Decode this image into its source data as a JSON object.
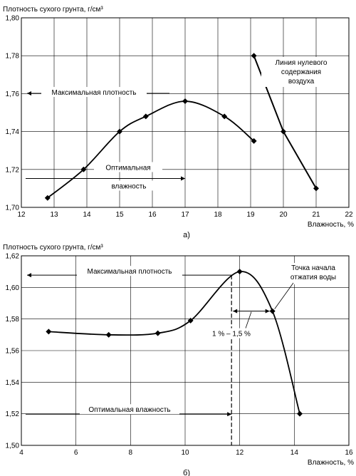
{
  "chart_data": [
    {
      "id": "a",
      "type": "line",
      "caption": "а)",
      "ylabel": "Плотность сухого грунта, г/см³",
      "xlabel": "Влажность, %",
      "xlim": [
        12,
        22
      ],
      "ylim": [
        1.7,
        1.8
      ],
      "xticks": [
        "12",
        "13",
        "14",
        "15",
        "16",
        "17",
        "18",
        "19",
        "20",
        "21",
        "22"
      ],
      "yticks": [
        "1,70",
        "1,72",
        "1,74",
        "1,76",
        "1,78",
        "1,80"
      ],
      "grid": true,
      "series": [
        {
          "kind": "compaction-curve",
          "points": [
            [
              12.8,
              1.705
            ],
            [
              13.9,
              1.72
            ],
            [
              15.0,
              1.74
            ],
            [
              15.8,
              1.748
            ],
            [
              17.0,
              1.756
            ],
            [
              18.2,
              1.748
            ],
            [
              19.1,
              1.735
            ]
          ]
        },
        {
          "kind": "zero-air-voids-line",
          "points": [
            [
              19.1,
              1.78
            ],
            [
              20.0,
              1.74
            ],
            [
              21.0,
              1.71
            ]
          ]
        }
      ],
      "annotations": {
        "max_density": "Максимальная плотность",
        "opt_moisture_line1": "Оптимальная",
        "opt_moisture_line2": "влажность",
        "zero_air_line1": "Линия нулевого",
        "zero_air_line2": "содержания",
        "zero_air_line3": "воздуха"
      },
      "max_density_value": 1.756,
      "optimal_moisture_value": 17.0
    },
    {
      "id": "b",
      "type": "line",
      "caption": "б)",
      "ylabel": "Плотность сухого грунта, г/см³",
      "xlabel": "Влажность, %",
      "xlim": [
        4,
        16
      ],
      "ylim": [
        1.5,
        1.62
      ],
      "xticks": [
        "4",
        "6",
        "8",
        "10",
        "12",
        "14",
        "16"
      ],
      "yticks": [
        "1,50",
        "1,52",
        "1,54",
        "1,56",
        "1,58",
        "1,60",
        "1,62"
      ],
      "grid": true,
      "series": [
        {
          "kind": "compaction-curve",
          "points": [
            [
              5.0,
              1.572
            ],
            [
              7.2,
              1.57
            ],
            [
              9.0,
              1.571
            ],
            [
              10.2,
              1.579
            ],
            [
              12.0,
              1.61
            ],
            [
              13.2,
              1.585
            ],
            [
              14.2,
              1.52
            ]
          ]
        }
      ],
      "annotations": {
        "max_density": "Максимальная плотность",
        "opt_moisture": "Оптимальная влажность",
        "water_point_line1": "Точка начала",
        "water_point_line2": "отжатия воды",
        "range": "1 % – 1,5 %"
      },
      "max_density_value": 1.61,
      "optimal_moisture_value": 11.7
    }
  ]
}
